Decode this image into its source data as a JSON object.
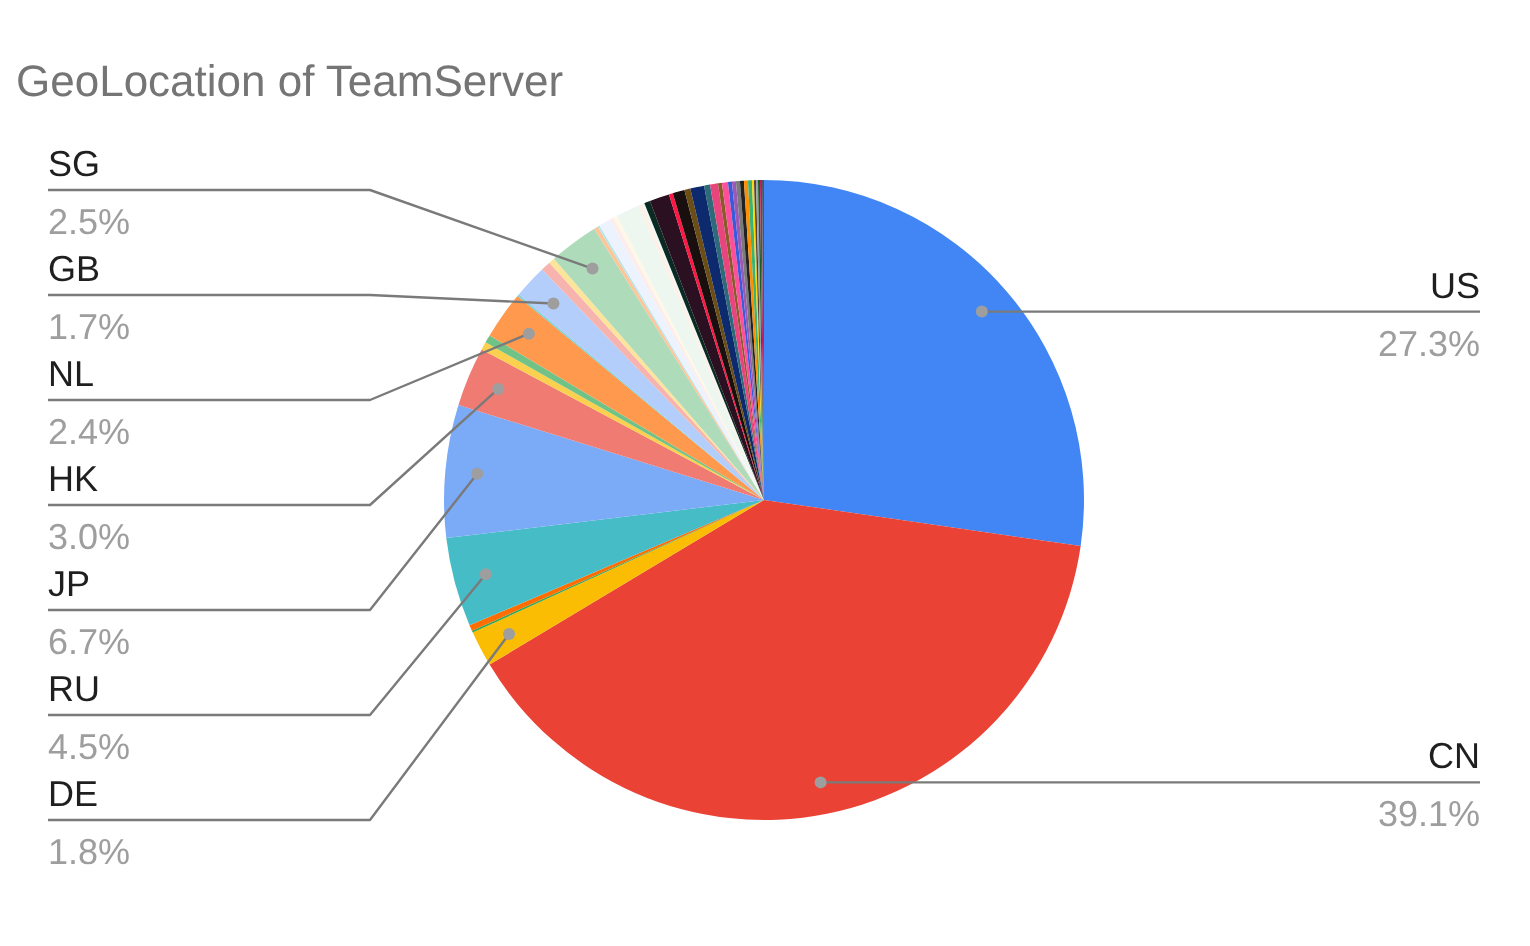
{
  "chart_data": {
    "type": "pie",
    "title": "GeoLocation of TeamServer",
    "categories": [
      "US",
      "CN",
      "DE",
      null,
      null,
      "RU",
      "JP",
      "HK",
      null,
      null,
      "NL",
      null,
      "GB",
      null,
      null,
      "SG",
      null,
      null,
      null,
      null,
      null,
      null,
      null,
      null,
      null,
      null,
      null,
      null,
      null,
      null,
      null,
      null,
      null,
      null,
      null,
      null,
      null,
      null,
      null,
      null,
      null,
      null,
      null,
      null,
      null,
      null
    ],
    "values": [
      27.3,
      39.1,
      1.8,
      0.1,
      0.3,
      4.5,
      6.7,
      3.0,
      0.4,
      0.4,
      2.4,
      0.1,
      1.7,
      0.5,
      0.3,
      2.5,
      0.2,
      0.1,
      0.6,
      0.2,
      0.2,
      1.2,
      0.2,
      0.1,
      0.3,
      1.0,
      0.2,
      0.6,
      0.3,
      0.7,
      0.3,
      0.4,
      0.2,
      0.3,
      0.2,
      0.2,
      0.2,
      0.2,
      0.2,
      0.2,
      0.1,
      0.1,
      0.1,
      0.1,
      0.1,
      0.1
    ],
    "colors": [
      "#4285f4",
      "#ea4335",
      "#fbbc04",
      "#34a853",
      "#ff6d01",
      "#46bdc6",
      "#7baaf7",
      "#f07b72",
      "#fcd04f",
      "#71c287",
      "#ff994d",
      "#7ed1d7",
      "#b3cefb",
      "#f7b4ae",
      "#fde49b",
      "#aedcba",
      "#ffc599",
      "#b5e5e8",
      "#ecf3fe",
      "#fdeceb",
      "#fff8e6",
      "#edf7f0",
      "#fff0e6",
      "#ecf9fa",
      "#0b2a22",
      "#2a1020",
      "#ff1744",
      "#1a0f0f",
      "#6b4e16",
      "#0d2a6e",
      "#2e6b7a",
      "#e8457f",
      "#8a5a2b",
      "#ff4f9a",
      "#3a5bd9",
      "#9b59b6",
      "#7a7a7a",
      "#222222",
      "#ff8f00",
      "#3cb371",
      "#ffd600",
      "#5d4037",
      "#90a4ae",
      "#1b5e20",
      "#c2185b",
      "#455a64"
    ],
    "value_labels": [
      "27.3%",
      "39.1%",
      "1.8%",
      null,
      null,
      "4.5%",
      "6.7%",
      "3.0%",
      null,
      null,
      "2.4%",
      null,
      "1.7%",
      null,
      null,
      "2.5%",
      null,
      null,
      null,
      null,
      null,
      null,
      null,
      null,
      null,
      null,
      null,
      null,
      null,
      null,
      null,
      null,
      null,
      null,
      null,
      null,
      null,
      null,
      null,
      null,
      null,
      null,
      null,
      null,
      null,
      null
    ]
  }
}
